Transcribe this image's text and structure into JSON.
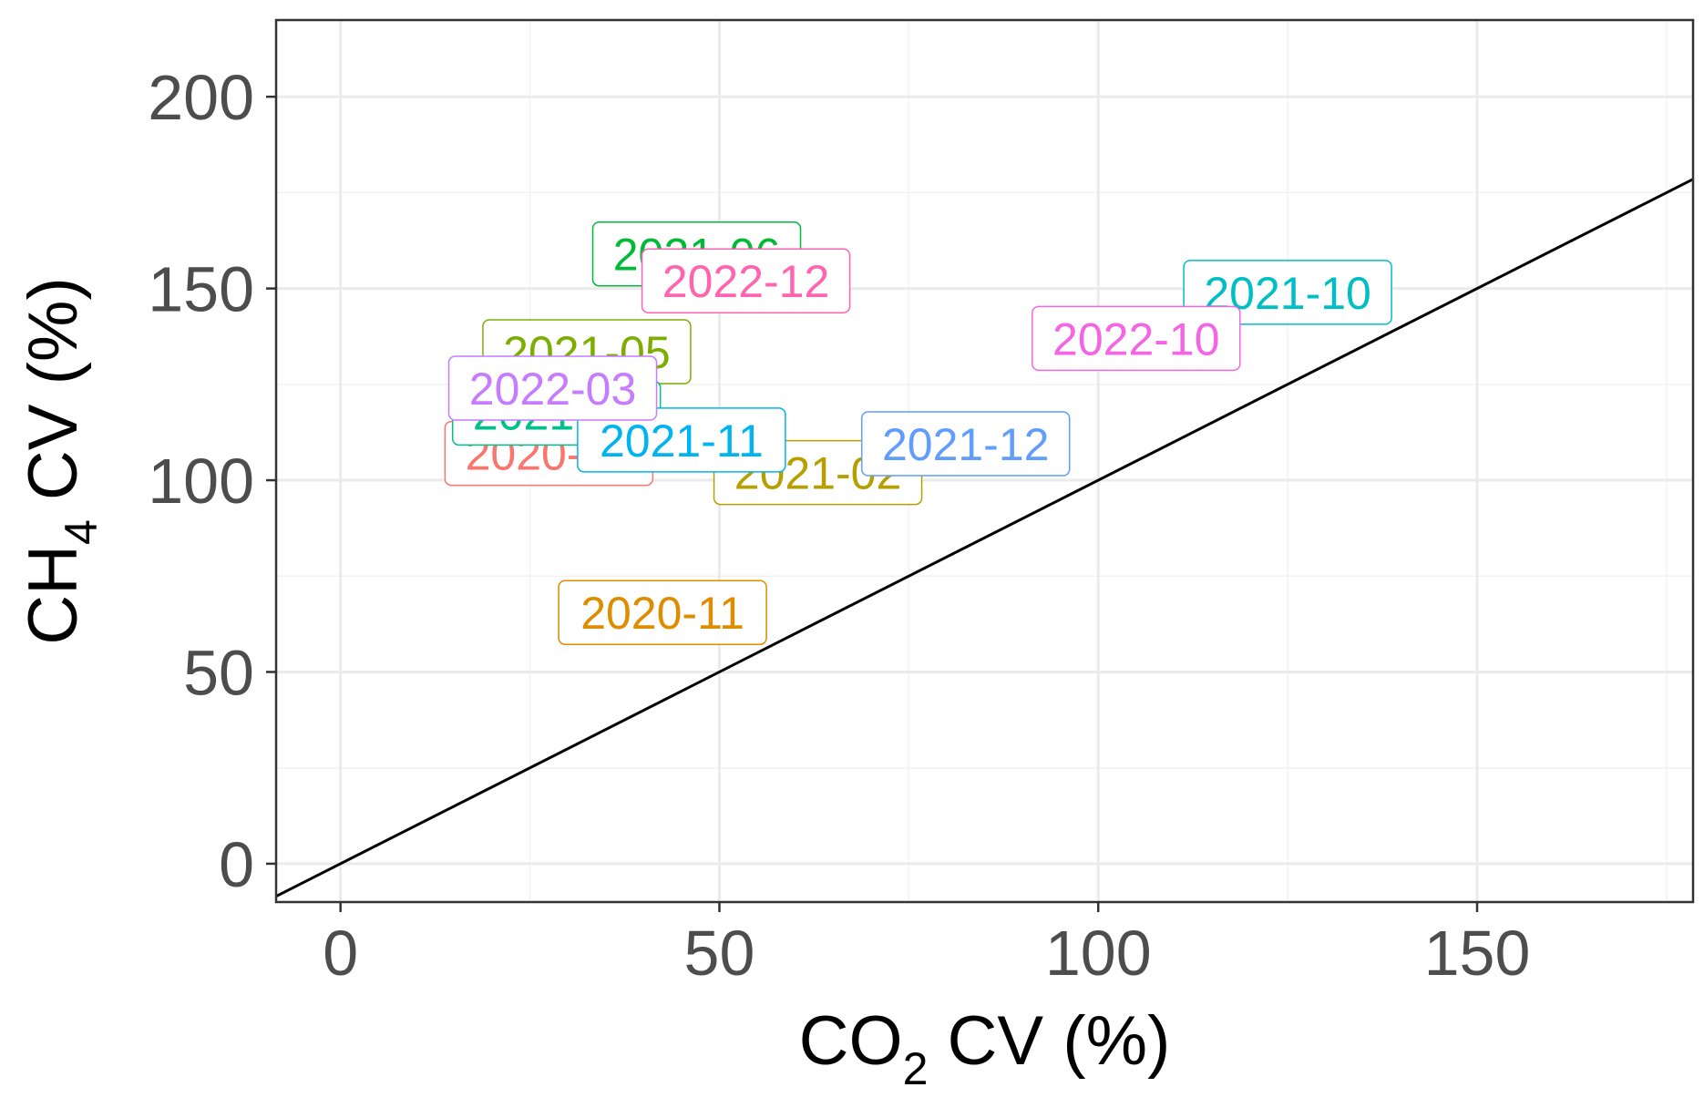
{
  "chart_data": {
    "type": "scatter",
    "title": "",
    "xlabel": {
      "main": "CO",
      "sub": "2",
      "rest": " CV (%)"
    },
    "ylabel": {
      "main": "CH",
      "sub": "4",
      "rest": " CV (%)"
    },
    "xlim": [
      -8.5,
      178.5
    ],
    "ylim": [
      -10,
      220
    ],
    "x_ticks": [
      0,
      50,
      100,
      150
    ],
    "y_ticks": [
      0,
      50,
      100,
      150,
      200
    ],
    "grid": true,
    "reference_line": {
      "type": "identity",
      "slope": 1,
      "intercept": 0,
      "color": "#000000"
    },
    "points": [
      {
        "label": "2020-10",
        "x": 27.5,
        "y": 107,
        "color": "#F8766D"
      },
      {
        "label": "2020-11",
        "x": 42.5,
        "y": 65.5,
        "color": "#DE8C00"
      },
      {
        "label": "2021-02",
        "x": 63,
        "y": 102,
        "color": "#B79F00"
      },
      {
        "label": "2021-05",
        "x": 32.5,
        "y": 133.5,
        "color": "#7CAE00"
      },
      {
        "label": "2021-06",
        "x": 47,
        "y": 159,
        "color": "#00BA38"
      },
      {
        "label": "2021-07",
        "x": 28.5,
        "y": 117.5,
        "color": "#00C08B"
      },
      {
        "label": "2021-10",
        "x": 125,
        "y": 149,
        "color": "#00BFC4"
      },
      {
        "label": "2021-11",
        "x": 45,
        "y": 110.5,
        "color": "#00B4F0"
      },
      {
        "label": "2021-12",
        "x": 82.5,
        "y": 109.5,
        "color": "#619CFF"
      },
      {
        "label": "2022-03",
        "x": 28,
        "y": 124,
        "color": "#C77CFF"
      },
      {
        "label": "2022-10",
        "x": 105,
        "y": 137,
        "color": "#F564E3"
      },
      {
        "label": "2022-12",
        "x": 53.5,
        "y": 152,
        "color": "#FF64B0"
      }
    ]
  }
}
